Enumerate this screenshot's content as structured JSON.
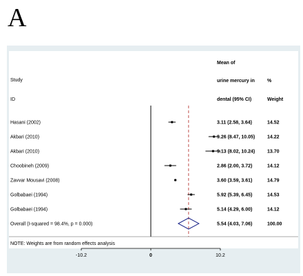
{
  "panel_letter": "A",
  "header": {
    "left_line1": "Study",
    "left_line2": "ID",
    "est_line1": "Mean of",
    "est_line2": "urine mercury in",
    "est_line3": "dental (95% CI)",
    "wt_line1": "%",
    "wt_line2": "Weight"
  },
  "note": "NOTE: Weights are from random effects analysis",
  "colors": {
    "background": "#e6eef1",
    "plot_area": "#ffffff",
    "reference_line": "#c0504d",
    "diamond": "#1f2a8c",
    "marker": "#000000"
  },
  "chart_data": {
    "type": "forest",
    "xlabel": "",
    "x_ticks": [
      {
        "value": -10.2,
        "label": "-10.2"
      },
      {
        "value": 0,
        "label": "0"
      },
      {
        "value": 10.2,
        "label": "10.2"
      }
    ],
    "xlim": [
      -10.2,
      10.2
    ],
    "null_line": 0,
    "overall_line": 5.54,
    "studies": [
      {
        "id": "Hasani (2002)",
        "mean": 3.11,
        "lower": 2.58,
        "upper": 3.64,
        "est_text": "3.11 (2.58, 3.64)",
        "weight": "14.52"
      },
      {
        "id": "Akbari (2010)",
        "mean": 9.26,
        "lower": 8.47,
        "upper": 10.05,
        "est_text": "9.26 (8.47, 10.05)",
        "weight": "14.22"
      },
      {
        "id": "Akbari (2010)",
        "mean": 9.13,
        "lower": 8.02,
        "upper": 10.24,
        "est_text": "9.13 (8.02, 10.24)",
        "weight": "13.70"
      },
      {
        "id": "Choobineh (2009)",
        "mean": 2.86,
        "lower": 2.0,
        "upper": 3.72,
        "est_text": "2.86 (2.00, 3.72)",
        "weight": "14.12"
      },
      {
        "id": "Zavvar Mousavi (2008)",
        "mean": 3.6,
        "lower": 3.59,
        "upper": 3.61,
        "est_text": "3.60 (3.59, 3.61)",
        "weight": "14.79"
      },
      {
        "id": "Golbabaei (1994)",
        "mean": 5.92,
        "lower": 5.39,
        "upper": 6.45,
        "est_text": "5.92 (5.39, 6.45)",
        "weight": "14.53"
      },
      {
        "id": "Golbabaei (1994)",
        "mean": 5.14,
        "lower": 4.29,
        "upper": 6.0,
        "est_text": "5.14 (4.29, 6.00)",
        "weight": "14.12"
      }
    ],
    "overall": {
      "id": "Overall  (I-squared = 98.4%, p = 0.000)",
      "mean": 5.54,
      "lower": 4.03,
      "upper": 7.06,
      "est_text": "5.54 (4.03, 7.06)",
      "weight": "100.00"
    }
  }
}
